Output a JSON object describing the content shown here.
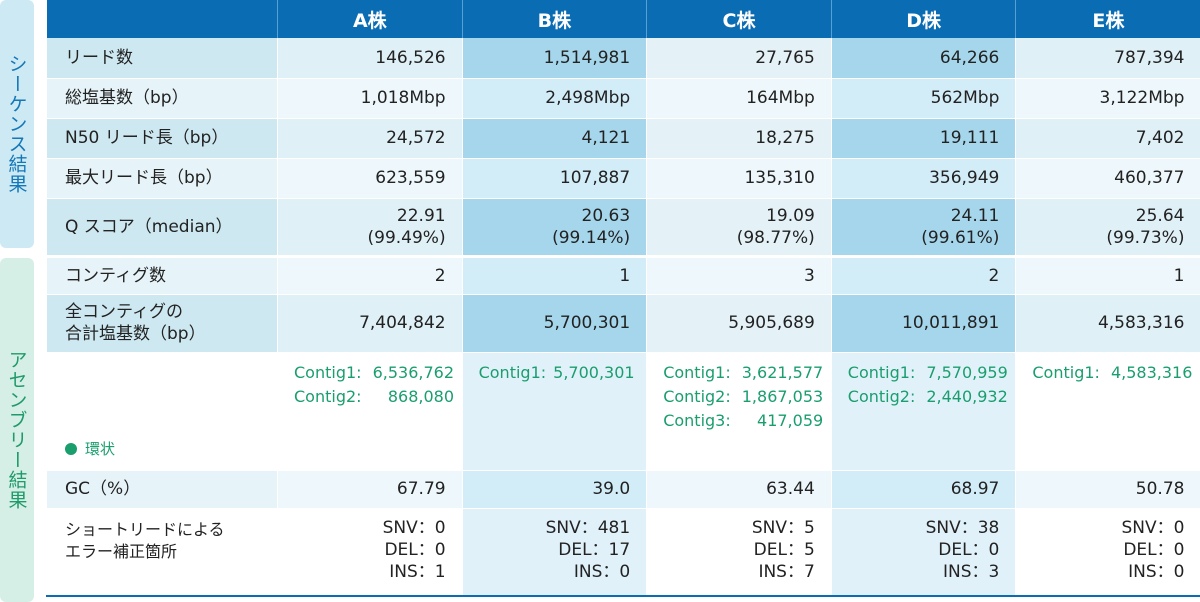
{
  "side_labels": {
    "sequence": "シーケンス結果",
    "assembly": "アセンブリー結果"
  },
  "columns": [
    "",
    "A株",
    "B株",
    "C株",
    "D株",
    "E株"
  ],
  "rows": {
    "reads": {
      "label": "リード数",
      "values": [
        "146,526",
        "1,514,981",
        "27,765",
        "64,266",
        "787,394"
      ]
    },
    "total_bases": {
      "label": "総塩基数（bp）",
      "values": [
        "1,018Mbp",
        "2,498Mbp",
        "164Mbp",
        "562Mbp",
        "3,122Mbp"
      ]
    },
    "n50": {
      "label": "N50 リード長（bp）",
      "values": [
        "24,572",
        "4,121",
        "18,275",
        "19,111",
        "7,402"
      ]
    },
    "max_read": {
      "label": "最大リード長（bp）",
      "values": [
        "623,559",
        "107,887",
        "135,310",
        "356,949",
        "460,377"
      ]
    },
    "qscore": {
      "label": "Q スコア（median）",
      "values": [
        [
          "22.91",
          "(99.49%)"
        ],
        [
          "20.63",
          "(99.14%)"
        ],
        [
          "19.09",
          "(98.77%)"
        ],
        [
          "24.11",
          "(99.61%)"
        ],
        [
          "25.64",
          "(99.73%)"
        ]
      ]
    },
    "contigs": {
      "label": "コンティグ数",
      "values": [
        "2",
        "1",
        "3",
        "2",
        "1"
      ]
    },
    "contig_total": {
      "label_line1": "全コンティグの",
      "label_line2": "合計塩基数（bp）",
      "values": [
        "7,404,842",
        "5,700,301",
        "5,905,689",
        "10,011,891",
        "4,583,316"
      ]
    },
    "contig_detail": {
      "legend": "環状",
      "values": [
        [
          [
            "Contig1:",
            "6,536,762"
          ],
          [
            "Contig2:",
            "868,080"
          ]
        ],
        [
          [
            "Contig1:",
            "5,700,301"
          ]
        ],
        [
          [
            "Contig1:",
            "3,621,577"
          ],
          [
            "Contig2:",
            "1,867,053"
          ],
          [
            "Contig3:",
            "417,059"
          ]
        ],
        [
          [
            "Contig1:",
            "7,570,959"
          ],
          [
            "Contig2:",
            "2,440,932"
          ]
        ],
        [
          [
            "Contig1:",
            "4,583,316"
          ]
        ]
      ]
    },
    "gc": {
      "label": "GC（%）",
      "values": [
        "67.79",
        "39.0",
        "63.44",
        "68.97",
        "50.78"
      ]
    },
    "corrections": {
      "label_line1": "ショートリードによる",
      "label_line2": "エラー補正箇所",
      "values": [
        [
          "SNV：0",
          "DEL：0",
          "INS：1"
        ],
        [
          "SNV：481",
          "DEL：17",
          "INS：0"
        ],
        [
          "SNV：5",
          "DEL：5",
          "INS：7"
        ],
        [
          "SNV：38",
          "DEL：0",
          "INS：3"
        ],
        [
          "SNV：0",
          "DEL：0",
          "INS：0"
        ]
      ]
    }
  },
  "colors": {
    "header": "#0a6db4",
    "contig_text": "#1a9e6e",
    "sequence_side": "#1478b8",
    "assembly_side": "#1f9a6a"
  }
}
